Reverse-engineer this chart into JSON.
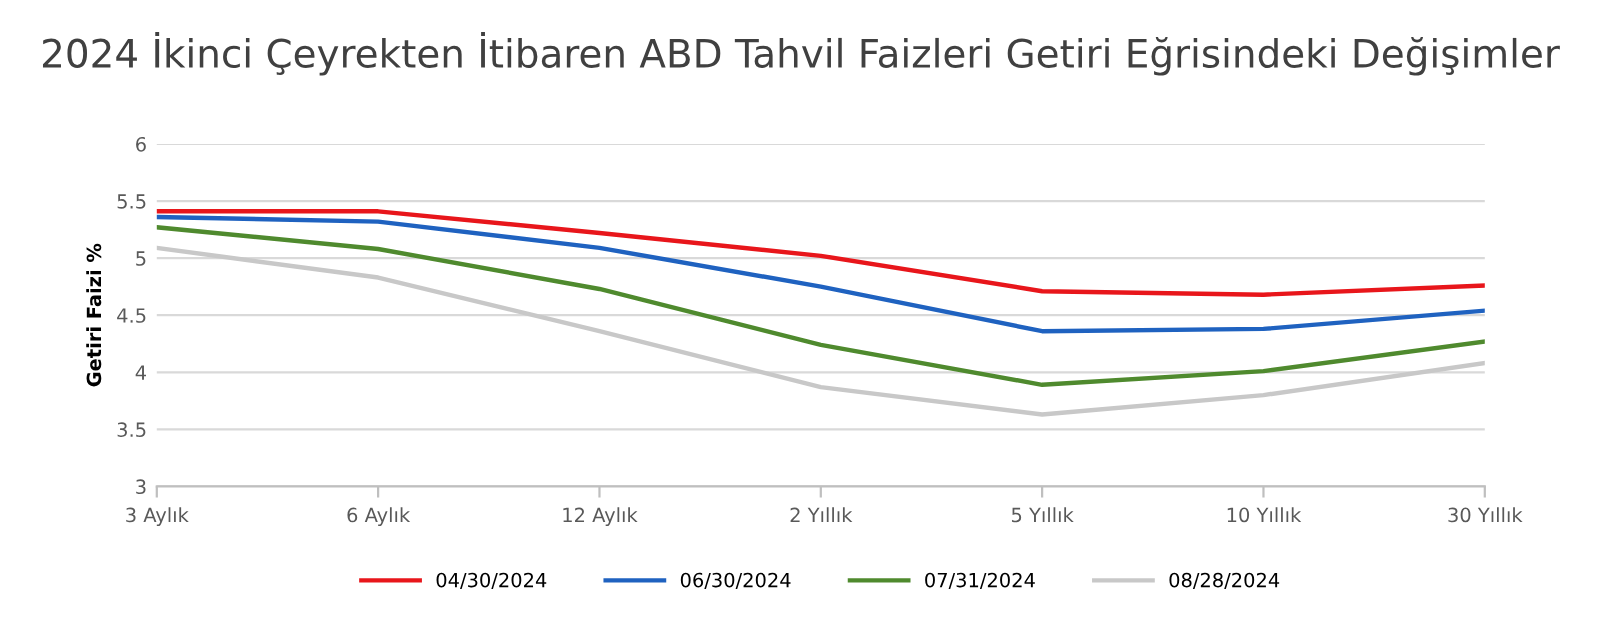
{
  "chart_data": {
    "type": "line",
    "title": "2024 İkinci Çeyrekten İtibaren ABD Tahvil Faizleri Getiri Eğrisindeki Değişimler",
    "ylabel": "Getiri Faizi %",
    "categories": [
      "3 Aylık",
      "6 Aylık",
      "12 Aylık",
      "2 Yıllık",
      "5 Yıllık",
      "10 Yıllık",
      "30 Yıllık"
    ],
    "series": [
      {
        "name": "04/30/2024",
        "color": "#e8161b",
        "values": [
          5.41,
          5.41,
          5.22,
          5.02,
          4.71,
          4.68,
          4.76
        ]
      },
      {
        "name": "06/30/2024",
        "color": "#1f62c0",
        "values": [
          5.36,
          5.32,
          5.09,
          4.75,
          4.36,
          4.38,
          4.54
        ]
      },
      {
        "name": "07/31/2024",
        "color": "#4f8a2e",
        "values": [
          5.27,
          5.08,
          4.73,
          4.24,
          3.89,
          4.01,
          4.27
        ]
      },
      {
        "name": "08/28/2024",
        "color": "#c8c8c8",
        "values": [
          5.09,
          4.83,
          4.36,
          3.87,
          3.63,
          3.8,
          4.08
        ]
      }
    ],
    "ylim": [
      3,
      6
    ],
    "yticks": [
      3,
      3.5,
      4,
      4.5,
      5,
      5.5,
      6
    ],
    "grid": "y",
    "legend": "bottom",
    "marker": "none",
    "line_style": "solid"
  }
}
